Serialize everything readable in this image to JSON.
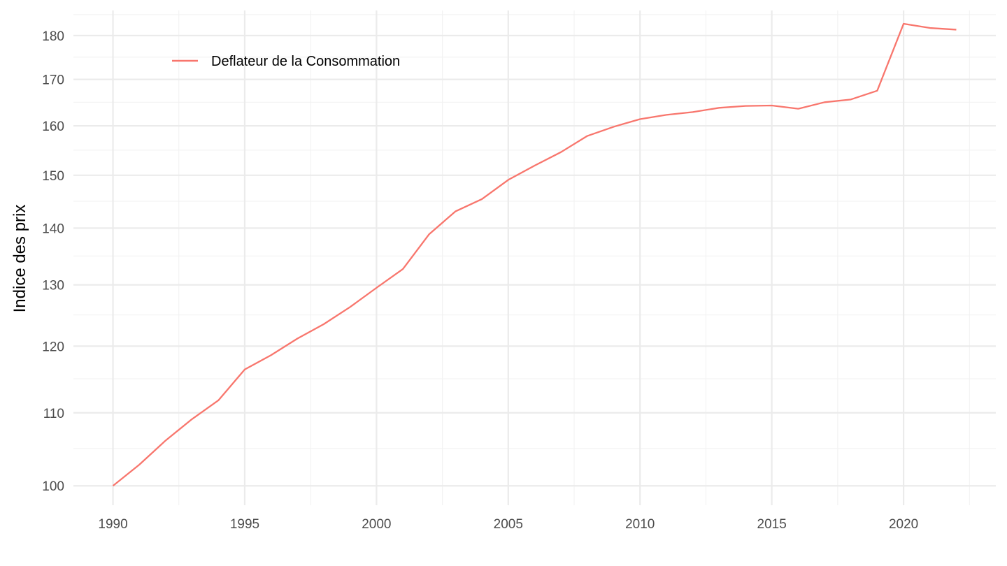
{
  "chart_data": {
    "type": "line",
    "y_scale": "log",
    "ylabel": "Indice des prix",
    "xlabel": "",
    "xlim": [
      1988.5,
      2023.5
    ],
    "ylim": [
      97.5,
      186.0
    ],
    "x_ticks": [
      1990,
      1995,
      2000,
      2005,
      2010,
      2015,
      2020
    ],
    "y_ticks": [
      100,
      110,
      120,
      130,
      140,
      150,
      160,
      170,
      180
    ],
    "grid": true,
    "legend_position": "top-left",
    "series": [
      {
        "name": "Deflateur de la Consommation",
        "color": "#F8766D",
        "x": [
          1990,
          1991,
          1992,
          1993,
          1994,
          1995,
          1996,
          1997,
          1998,
          1999,
          2000,
          2001,
          2002,
          2003,
          2004,
          2005,
          2006,
          2007,
          2008,
          2009,
          2010,
          2011,
          2012,
          2013,
          2014,
          2015,
          2016,
          2017,
          2018,
          2019,
          2020,
          2021,
          2022
        ],
        "y": [
          100.0,
          102.8,
          106.1,
          109.1,
          111.8,
          116.4,
          118.6,
          121.2,
          123.5,
          126.3,
          129.5,
          132.7,
          138.9,
          143.1,
          145.4,
          149.1,
          151.9,
          154.6,
          157.9,
          159.8,
          161.4,
          162.3,
          162.9,
          163.8,
          164.2,
          164.3,
          163.6,
          165.0,
          165.6,
          167.5,
          182.8,
          181.8,
          181.4
        ]
      }
    ]
  }
}
